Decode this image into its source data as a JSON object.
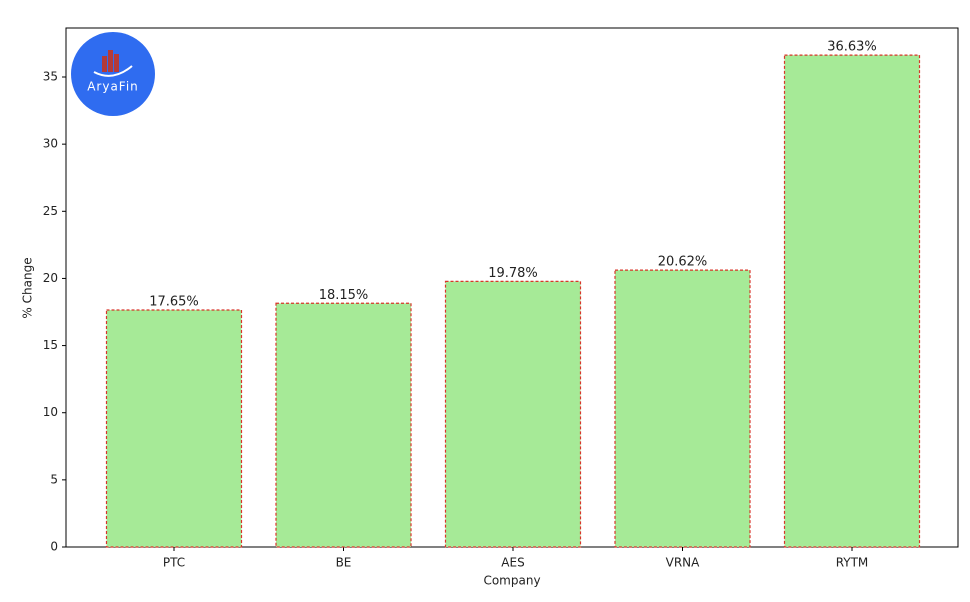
{
  "chart_data": {
    "type": "bar",
    "logo_text": "AryaFin",
    "x_label": "Company",
    "y_label": "% Change",
    "categories": [
      "PTC",
      "BE",
      "AES",
      "VRNA",
      "RYTM"
    ],
    "values": [
      17.65,
      18.15,
      19.78,
      20.62,
      36.63
    ],
    "value_labels": [
      "17.65%",
      "18.15%",
      "19.78%",
      "20.62%",
      "36.63%"
    ],
    "color": "#a6ea97",
    "edge_color": "#d9352a",
    "ylim": [
      0,
      38.65
    ],
    "yticks": [
      0,
      5,
      10,
      15,
      20,
      25,
      30,
      35
    ],
    "grid": false
  }
}
